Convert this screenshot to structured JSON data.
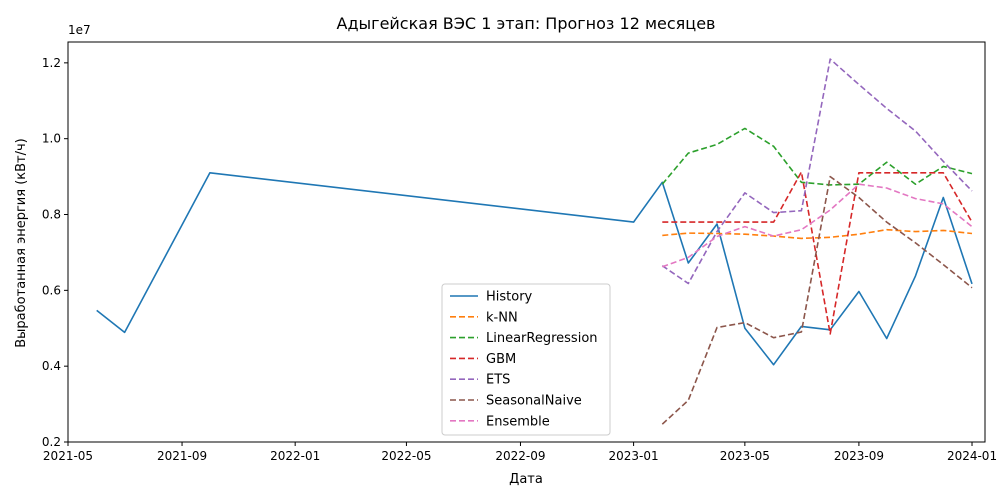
{
  "chart_data": {
    "type": "line",
    "title": "Адыгейская ВЭС 1 этап: Прогноз 12 месяцев",
    "xlabel": "Дата",
    "ylabel": "Выработанная энергия (кВт/ч)",
    "y_multiplier_label": "1e7",
    "xlim": [
      "2021-05-01",
      "2024-01-15"
    ],
    "ylim": [
      0.2,
      1.255
    ],
    "x_ticks": [
      "2021-05",
      "2021-09",
      "2022-01",
      "2022-05",
      "2022-09",
      "2023-01",
      "2023-05",
      "2023-09",
      "2024-01"
    ],
    "y_ticks": [
      "0.2",
      "0.4",
      "0.6",
      "0.8",
      "1.0",
      "1.2"
    ],
    "legend_position": "lower-center",
    "series": [
      {
        "name": "History",
        "color": "#1f77b4",
        "style": "solid",
        "x": [
          "2021-06-01",
          "2021-07-01",
          "2021-10-01",
          "2023-01-01",
          "2023-02-01",
          "2023-03-01",
          "2023-04-01",
          "2023-05-01",
          "2023-06-01",
          "2023-07-01",
          "2023-08-01",
          "2023-09-01",
          "2023-10-01",
          "2023-11-01",
          "2023-12-01",
          "2024-01-01"
        ],
        "y": [
          0.547,
          0.489,
          0.91,
          0.78,
          0.885,
          0.672,
          0.775,
          0.5,
          0.404,
          0.505,
          0.496,
          0.597,
          0.473,
          0.638,
          0.845,
          0.617
        ]
      },
      {
        "name": "k-NN",
        "color": "#ff7f0e",
        "style": "dashed",
        "x": [
          "2023-02-01",
          "2023-03-01",
          "2023-04-01",
          "2023-05-01",
          "2023-06-01",
          "2023-07-01",
          "2023-08-01",
          "2023-09-01",
          "2023-10-01",
          "2023-11-01",
          "2023-12-01",
          "2024-01-01"
        ],
        "y": [
          0.745,
          0.751,
          0.75,
          0.748,
          0.743,
          0.737,
          0.74,
          0.748,
          0.76,
          0.755,
          0.758,
          0.75
        ]
      },
      {
        "name": "LinearRegression",
        "color": "#2ca02c",
        "style": "dashed",
        "x": [
          "2023-02-01",
          "2023-03-01",
          "2023-04-01",
          "2023-05-01",
          "2023-06-01",
          "2023-07-01",
          "2023-08-01",
          "2023-09-01",
          "2023-10-01",
          "2023-11-01",
          "2023-12-01",
          "2024-01-01"
        ],
        "y": [
          0.88,
          0.962,
          0.985,
          1.027,
          0.98,
          0.885,
          0.878,
          0.88,
          0.938,
          0.88,
          0.927,
          0.908
        ]
      },
      {
        "name": "GBM",
        "color": "#d62728",
        "style": "dashed",
        "x": [
          "2023-02-01",
          "2023-03-01",
          "2023-04-01",
          "2023-05-01",
          "2023-06-01",
          "2023-07-01",
          "2023-08-01",
          "2023-09-01",
          "2023-10-01",
          "2023-11-01",
          "2023-12-01",
          "2024-01-01"
        ],
        "y": [
          0.78,
          0.78,
          0.78,
          0.78,
          0.78,
          0.912,
          0.485,
          0.91,
          0.91,
          0.91,
          0.91,
          0.78
        ]
      },
      {
        "name": "ETS",
        "color": "#9467bd",
        "style": "dashed",
        "x": [
          "2023-02-01",
          "2023-03-01",
          "2023-04-01",
          "2023-05-01",
          "2023-06-01",
          "2023-07-01",
          "2023-08-01",
          "2023-09-01",
          "2023-10-01",
          "2023-11-01",
          "2023-12-01",
          "2024-01-01"
        ],
        "y": [
          0.665,
          0.618,
          0.755,
          0.857,
          0.805,
          0.81,
          1.21,
          1.143,
          1.08,
          1.02,
          0.94,
          0.862
        ]
      },
      {
        "name": "SeasonalNaive",
        "color": "#8c564b",
        "style": "dashed",
        "x": [
          "2023-02-01",
          "2023-03-01",
          "2023-04-01",
          "2023-05-01",
          "2023-06-01",
          "2023-07-01",
          "2023-08-01",
          "2023-09-01",
          "2023-10-01",
          "2023-11-01",
          "2023-12-01",
          "2024-01-01"
        ],
        "y": [
          0.247,
          0.31,
          0.502,
          0.515,
          0.475,
          0.49,
          0.9,
          0.845,
          0.78,
          0.725,
          0.668,
          0.607
        ]
      },
      {
        "name": "Ensemble",
        "color": "#e377c2",
        "style": "dashed",
        "x": [
          "2023-02-01",
          "2023-03-01",
          "2023-04-01",
          "2023-05-01",
          "2023-06-01",
          "2023-07-01",
          "2023-08-01",
          "2023-09-01",
          "2023-10-01",
          "2023-11-01",
          "2023-12-01",
          "2024-01-01"
        ],
        "y": [
          0.662,
          0.687,
          0.742,
          0.768,
          0.743,
          0.76,
          0.812,
          0.88,
          0.87,
          0.842,
          0.828,
          0.768
        ]
      }
    ]
  }
}
